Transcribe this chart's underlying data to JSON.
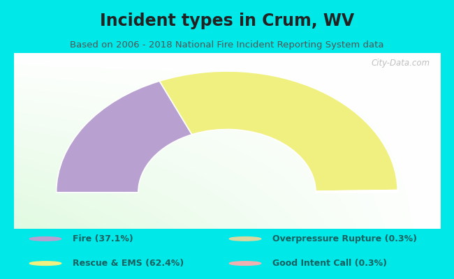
{
  "title": "Incident types in Crum, WV",
  "subtitle": "Based on 2006 - 2018 National Fire Incident Reporting System data",
  "bg_color": "#00e8e8",
  "chart_bg": "#f0f8f0",
  "segments": [
    {
      "label": "Fire (37.1%)",
      "value": 37.1,
      "color": "#b8a0d0"
    },
    {
      "label": "Rescue & EMS (62.4%)",
      "value": 62.4,
      "color": "#f0f080"
    },
    {
      "label": "Overpressure Rupture (0.3%)",
      "value": 0.3,
      "color": "#d8d8a0"
    },
    {
      "label": "Good Intent Call (0.3%)",
      "value": 0.3,
      "color": "#f0b0b0"
    }
  ],
  "legend_colors": [
    "#b8a0d0",
    "#f0f080",
    "#d8d8a0",
    "#f0b0b0"
  ],
  "legend_labels": [
    "Fire (37.1%)",
    "Rescue & EMS (62.4%)",
    "Overpressure Rupture (0.3%)",
    "Good Intent Call (0.3%)"
  ],
  "watermark": "City-Data.com",
  "title_color": "#222222",
  "subtitle_color": "#555555",
  "legend_text_color": "#1a6060",
  "title_fontsize": 17,
  "subtitle_fontsize": 9.5,
  "legend_fontsize": 9
}
